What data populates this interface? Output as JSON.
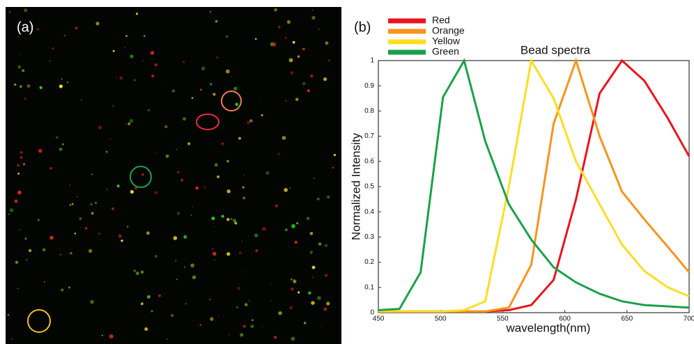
{
  "panel_a": {
    "label": "(a)"
  },
  "chart_data": {
    "type": "line",
    "label": "(b)",
    "title": "Bead spectra",
    "x_label": "wavelength(nm)",
    "y_label": "Normalized Intensity",
    "x": [
      450,
      467,
      484,
      502,
      519,
      536,
      555,
      573,
      591,
      609,
      628,
      646,
      664,
      683,
      700
    ],
    "series": [
      {
        "name": "Red",
        "color": "#e8141e",
        "values": [
          0.005,
          0.005,
          0.005,
          0.005,
          0.005,
          0.005,
          0.01,
          0.03,
          0.13,
          0.45,
          0.87,
          1.0,
          0.92,
          0.77,
          0.62
        ]
      },
      {
        "name": "Orange",
        "color": "#f7941d",
        "values": [
          0.005,
          0.005,
          0.005,
          0.005,
          0.005,
          0.005,
          0.02,
          0.19,
          0.75,
          1.0,
          0.7,
          0.48,
          0.37,
          0.26,
          0.16
        ]
      },
      {
        "name": "Yellow",
        "color": "#ffdd22",
        "values": [
          0.005,
          0.005,
          0.005,
          0.005,
          0.01,
          0.045,
          0.5,
          1.0,
          0.85,
          0.6,
          0.43,
          0.27,
          0.165,
          0.1,
          0.065
        ]
      },
      {
        "name": "Green",
        "color": "#1aa04b",
        "values": [
          0.01,
          0.015,
          0.16,
          0.855,
          1.0,
          0.68,
          0.43,
          0.29,
          0.18,
          0.12,
          0.075,
          0.045,
          0.03,
          0.025,
          0.02
        ]
      }
    ],
    "xlim": [
      450,
      700
    ],
    "xticks": [
      450,
      500,
      550,
      600,
      650,
      700
    ],
    "ylim": [
      0,
      1
    ],
    "yticks": [
      0,
      0.1,
      0.2,
      0.3,
      0.4,
      0.5,
      0.6,
      0.7,
      0.8,
      0.9,
      1
    ],
    "legend": "top-left"
  }
}
